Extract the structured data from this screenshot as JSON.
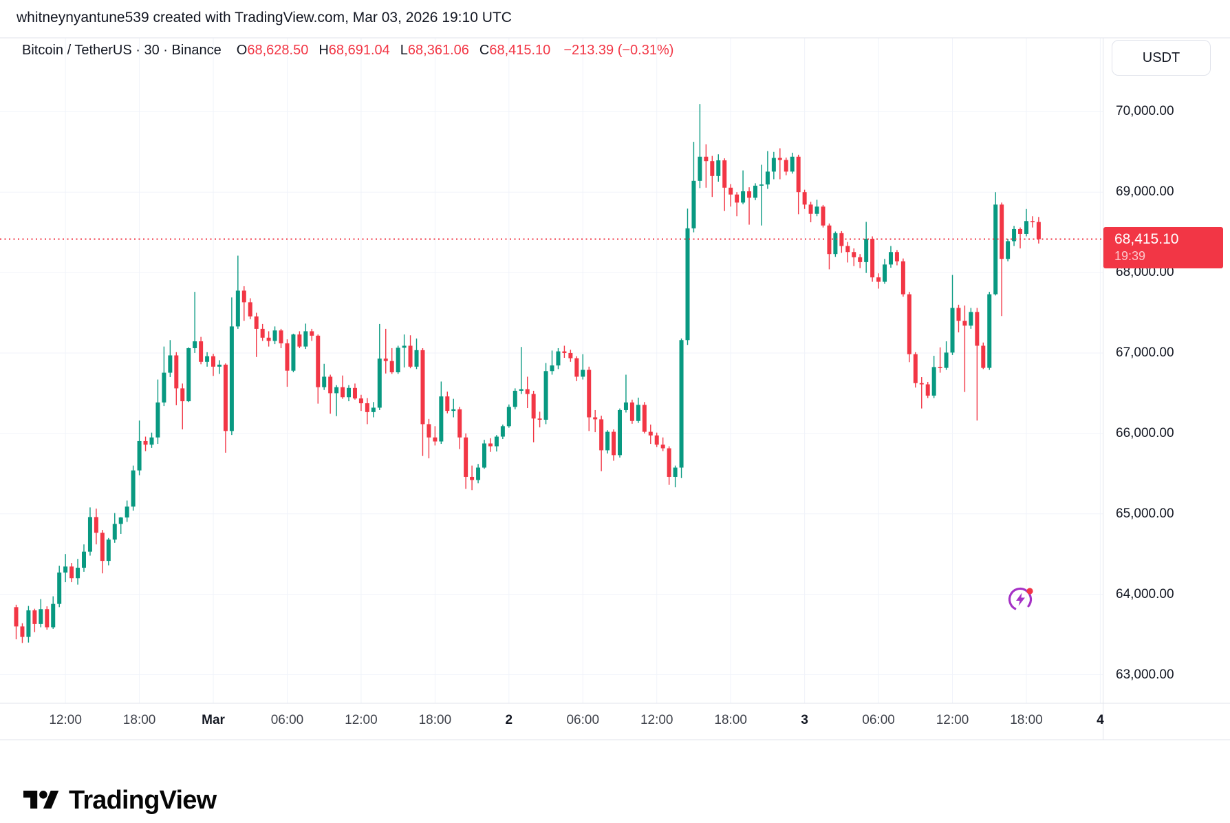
{
  "header": {
    "attribution": "whitneynyantune539 created with TradingView.com, Mar 03, 2026 19:10 UTC"
  },
  "legend": {
    "title": "Bitcoin / TetherUS · 30 · Binance",
    "ohlc": [
      {
        "label": "O",
        "value": "68,628.50"
      },
      {
        "label": "H",
        "value": "68,691.04"
      },
      {
        "label": "L",
        "value": "68,361.06"
      },
      {
        "label": "C",
        "value": "68,415.10"
      }
    ],
    "change": "−213.39 (−0.31%)"
  },
  "price_axis": {
    "currency_button": "USDT",
    "labels": [
      {
        "price": 70000,
        "text": "70,000.00"
      },
      {
        "price": 69000,
        "text": "69,000.00"
      },
      {
        "price": 68000,
        "text": "68,000.00"
      },
      {
        "price": 67000,
        "text": "67,000.00"
      },
      {
        "price": 66000,
        "text": "66,000.00"
      },
      {
        "price": 65000,
        "text": "65,000.00"
      },
      {
        "price": 64000,
        "text": "64,000.00"
      },
      {
        "price": 63000,
        "text": "63,000.00"
      }
    ],
    "last_price_label": {
      "value": "68,415.10",
      "countdown": "19:39"
    }
  },
  "footer": {
    "brand": "TradingView"
  },
  "colors": {
    "up": "#089981",
    "down": "#F23645",
    "grid": "#F0F3FA",
    "border": "#E0E3EB",
    "text": "#131722",
    "last_price_line": "#F23645",
    "badge_bg": "#F23645",
    "flash_purple": "#A531C6"
  },
  "chart_data": {
    "type": "candlestick",
    "symbol": "Bitcoin / TetherUS",
    "exchange": "Binance",
    "interval": "30m",
    "start_time": "2026-02-28 08:00 UTC",
    "interval_minutes": 30,
    "last_close": 68415.1,
    "last_change": -213.39,
    "last_change_pct": -0.31,
    "ylim": [
      62645,
      70918
    ],
    "xlim_index": [
      -2.625,
      176.4
    ],
    "grid": true,
    "price_ticks": [
      70000,
      69000,
      68000,
      67000,
      66000,
      65000,
      64000,
      63000
    ],
    "time_ticks": [
      {
        "index": 8,
        "label": "12:00",
        "bold": false
      },
      {
        "index": 20,
        "label": "18:00",
        "bold": false
      },
      {
        "index": 32,
        "label": "Mar",
        "bold": true
      },
      {
        "index": 44,
        "label": "06:00",
        "bold": false
      },
      {
        "index": 56,
        "label": "12:00",
        "bold": false
      },
      {
        "index": 68,
        "label": "18:00",
        "bold": false
      },
      {
        "index": 80,
        "label": "2",
        "bold": true
      },
      {
        "index": 92,
        "label": "06:00",
        "bold": false
      },
      {
        "index": 104,
        "label": "12:00",
        "bold": false
      },
      {
        "index": 116,
        "label": "18:00",
        "bold": false
      },
      {
        "index": 128,
        "label": "3",
        "bold": true
      },
      {
        "index": 140,
        "label": "06:00",
        "bold": false
      },
      {
        "index": 152,
        "label": "12:00",
        "bold": false
      },
      {
        "index": 164,
        "label": "18:00",
        "bold": false
      },
      {
        "index": 176,
        "label": "4",
        "bold": true
      }
    ],
    "candles_format": [
      "open",
      "high",
      "low",
      "close"
    ],
    "candles": [
      [
        63840,
        63870,
        63440,
        63600
      ],
      [
        63600,
        63640,
        63395,
        63470
      ],
      [
        63470,
        63855,
        63400,
        63800
      ],
      [
        63800,
        63820,
        63530,
        63630
      ],
      [
        63630,
        63940,
        63590,
        63815
      ],
      [
        63815,
        63850,
        63560,
        63590
      ],
      [
        63590,
        63975,
        63570,
        63880
      ],
      [
        63880,
        64355,
        63840,
        64270
      ],
      [
        64270,
        64500,
        64150,
        64345
      ],
      [
        64345,
        64390,
        64150,
        64200
      ],
      [
        64200,
        64440,
        64120,
        64330
      ],
      [
        64330,
        64620,
        64280,
        64530
      ],
      [
        64530,
        65080,
        64480,
        64960
      ],
      [
        64960,
        65065,
        64620,
        64765
      ],
      [
        64765,
        64800,
        64260,
        64415
      ],
      [
        64415,
        64700,
        64360,
        64680
      ],
      [
        64680,
        65010,
        64640,
        64875
      ],
      [
        64875,
        64960,
        64750,
        64955
      ],
      [
        64955,
        65165,
        64900,
        65090
      ],
      [
        65090,
        65600,
        65040,
        65540
      ],
      [
        65540,
        66160,
        65480,
        65905
      ],
      [
        65905,
        65960,
        65780,
        65860
      ],
      [
        65860,
        66010,
        65820,
        65950
      ],
      [
        65950,
        66670,
        65870,
        66385
      ],
      [
        66385,
        67080,
        66340,
        66755
      ],
      [
        66755,
        67160,
        66700,
        66970
      ],
      [
        66970,
        67010,
        66350,
        66560
      ],
      [
        66560,
        66620,
        66050,
        66400
      ],
      [
        66400,
        67070,
        66390,
        67060
      ],
      [
        67060,
        67760,
        67000,
        67145
      ],
      [
        67145,
        67200,
        66860,
        66890
      ],
      [
        66890,
        67010,
        66830,
        66960
      ],
      [
        66960,
        66990,
        66715,
        66830
      ],
      [
        66830,
        66910,
        66740,
        66855
      ],
      [
        66855,
        66870,
        65760,
        66030
      ],
      [
        66030,
        67690,
        65980,
        67330
      ],
      [
        67330,
        68210,
        67300,
        67775
      ],
      [
        67775,
        67830,
        67400,
        67630
      ],
      [
        67630,
        67680,
        67420,
        67455
      ],
      [
        67455,
        67500,
        66950,
        67300
      ],
      [
        67300,
        67360,
        67150,
        67190
      ],
      [
        67190,
        67270,
        67080,
        67150
      ],
      [
        67150,
        67330,
        67110,
        67280
      ],
      [
        67280,
        67300,
        67060,
        67120
      ],
      [
        67120,
        67170,
        66580,
        66780
      ],
      [
        66780,
        67240,
        66760,
        67230
      ],
      [
        67230,
        67270,
        67060,
        67080
      ],
      [
        67080,
        67365,
        67050,
        67270
      ],
      [
        67270,
        67300,
        67150,
        67215
      ],
      [
        67215,
        67230,
        66370,
        66575
      ],
      [
        66575,
        66865,
        66540,
        66705
      ],
      [
        66705,
        66730,
        66245,
        66500
      ],
      [
        66500,
        66600,
        66215,
        66575
      ],
      [
        66575,
        66720,
        66430,
        66450
      ],
      [
        66450,
        66600,
        66400,
        66565
      ],
      [
        66565,
        66620,
        66420,
        66435
      ],
      [
        66435,
        66480,
        66280,
        66375
      ],
      [
        66375,
        66440,
        66115,
        66265
      ],
      [
        66265,
        66390,
        66200,
        66320
      ],
      [
        66320,
        67360,
        66290,
        66930
      ],
      [
        66930,
        67300,
        66745,
        66900
      ],
      [
        66900,
        67060,
        66740,
        66760
      ],
      [
        66760,
        67090,
        66740,
        67065
      ],
      [
        67065,
        67230,
        66820,
        67090
      ],
      [
        67090,
        67220,
        66810,
        66830
      ],
      [
        66830,
        67180,
        66800,
        67035
      ],
      [
        67035,
        67060,
        65720,
        66115
      ],
      [
        66115,
        66180,
        65690,
        65950
      ],
      [
        65950,
        66090,
        65850,
        65900
      ],
      [
        65900,
        66645,
        65870,
        66460
      ],
      [
        66460,
        66520,
        66250,
        66280
      ],
      [
        66280,
        66430,
        66200,
        66300
      ],
      [
        66300,
        66330,
        65805,
        65950
      ],
      [
        65950,
        66000,
        65310,
        65460
      ],
      [
        65460,
        65600,
        65295,
        65420
      ],
      [
        65420,
        65620,
        65380,
        65575
      ],
      [
        65575,
        65920,
        65560,
        65875
      ],
      [
        65875,
        65940,
        65770,
        65840
      ],
      [
        65840,
        65980,
        65775,
        65960
      ],
      [
        65960,
        66110,
        65930,
        66090
      ],
      [
        66090,
        66360,
        66070,
        66330
      ],
      [
        66330,
        66560,
        66300,
        66530
      ],
      [
        66530,
        67075,
        66490,
        66550
      ],
      [
        66550,
        66705,
        66315,
        66490
      ],
      [
        66490,
        66530,
        65890,
        66185
      ],
      [
        66185,
        66270,
        66075,
        66170
      ],
      [
        66170,
        66875,
        66115,
        66775
      ],
      [
        66775,
        67030,
        66730,
        66845
      ],
      [
        66845,
        67060,
        66800,
        67020
      ],
      [
        67020,
        67090,
        66940,
        67000
      ],
      [
        67000,
        67040,
        66890,
        66935
      ],
      [
        66935,
        66960,
        66650,
        66705
      ],
      [
        66705,
        66985,
        66670,
        66790
      ],
      [
        66790,
        66830,
        66030,
        66200
      ],
      [
        66200,
        66290,
        66015,
        66175
      ],
      [
        66175,
        66220,
        65530,
        65790
      ],
      [
        65790,
        66040,
        65750,
        66020
      ],
      [
        66020,
        66050,
        65660,
        65730
      ],
      [
        65730,
        66310,
        65700,
        66290
      ],
      [
        66290,
        66730,
        66260,
        66385
      ],
      [
        66385,
        66420,
        66120,
        66155
      ],
      [
        66155,
        66445,
        66130,
        66355
      ],
      [
        66355,
        66390,
        66000,
        66020
      ],
      [
        66020,
        66110,
        65870,
        65975
      ],
      [
        65975,
        66010,
        65830,
        65860
      ],
      [
        65860,
        65950,
        65780,
        65815
      ],
      [
        65815,
        65840,
        65360,
        65460
      ],
      [
        65460,
        65600,
        65330,
        65575
      ],
      [
        65575,
        67180,
        65445,
        67160
      ],
      [
        67160,
        68795,
        67100,
        68550
      ],
      [
        68550,
        69625,
        68500,
        69140
      ],
      [
        69140,
        70095,
        69050,
        69440
      ],
      [
        69440,
        69595,
        69055,
        69385
      ],
      [
        69385,
        69450,
        68940,
        69200
      ],
      [
        69200,
        69470,
        69130,
        69395
      ],
      [
        69395,
        69420,
        68765,
        69055
      ],
      [
        69055,
        69100,
        68820,
        68970
      ],
      [
        68970,
        69000,
        68700,
        68870
      ],
      [
        68870,
        69270,
        68850,
        69010
      ],
      [
        69010,
        69060,
        68595,
        68930
      ],
      [
        68930,
        69110,
        68900,
        69080
      ],
      [
        69080,
        69340,
        68585,
        69095
      ],
      [
        69095,
        69510,
        69040,
        69255
      ],
      [
        69255,
        69500,
        69160,
        69425
      ],
      [
        69425,
        69545,
        69160,
        69400
      ],
      [
        69400,
        69430,
        69210,
        69255
      ],
      [
        69255,
        69490,
        69230,
        69440
      ],
      [
        69440,
        69465,
        68725,
        69000
      ],
      [
        69000,
        69030,
        68790,
        68845
      ],
      [
        68845,
        68880,
        68625,
        68730
      ],
      [
        68730,
        68905,
        68700,
        68820
      ],
      [
        68820,
        68840,
        68560,
        68585
      ],
      [
        68585,
        68610,
        68040,
        68230
      ],
      [
        68230,
        68510,
        68195,
        68490
      ],
      [
        68490,
        68515,
        68245,
        68330
      ],
      [
        68330,
        68380,
        68125,
        68255
      ],
      [
        68255,
        68300,
        68080,
        68190
      ],
      [
        68190,
        68230,
        68055,
        68130
      ],
      [
        68130,
        68630,
        67995,
        68420
      ],
      [
        68420,
        68450,
        67885,
        67940
      ],
      [
        67940,
        67990,
        67800,
        67885
      ],
      [
        67885,
        68170,
        67860,
        68100
      ],
      [
        68100,
        68330,
        68060,
        68255
      ],
      [
        68255,
        68280,
        68090,
        68140
      ],
      [
        68140,
        68175,
        67700,
        67730
      ],
      [
        67730,
        67760,
        66886,
        66985
      ],
      [
        66985,
        67010,
        66570,
        66625
      ],
      [
        66625,
        66700,
        66310,
        66610
      ],
      [
        66610,
        66640,
        66440,
        66470
      ],
      [
        66470,
        66965,
        66440,
        66825
      ],
      [
        66825,
        67070,
        66755,
        66815
      ],
      [
        66815,
        67145,
        66790,
        67005
      ],
      [
        67005,
        67970,
        66975,
        67560
      ],
      [
        67560,
        67600,
        67256,
        67400
      ],
      [
        67400,
        67590,
        66515,
        67340
      ],
      [
        67340,
        67560,
        67300,
        67510
      ],
      [
        67510,
        67560,
        66160,
        67090
      ],
      [
        67090,
        67130,
        66800,
        66815
      ],
      [
        66815,
        67760,
        66790,
        67730
      ],
      [
        67730,
        69000,
        67715,
        68845
      ],
      [
        68845,
        68870,
        67460,
        68170
      ],
      [
        68170,
        68420,
        68140,
        68390
      ],
      [
        68390,
        68580,
        68330,
        68540
      ],
      [
        68540,
        68560,
        68300,
        68480
      ],
      [
        68480,
        68790,
        68450,
        68640
      ],
      [
        68640,
        68700,
        68560,
        68628.5
      ],
      [
        68628.5,
        68691.04,
        68361.06,
        68415.1
      ]
    ]
  }
}
